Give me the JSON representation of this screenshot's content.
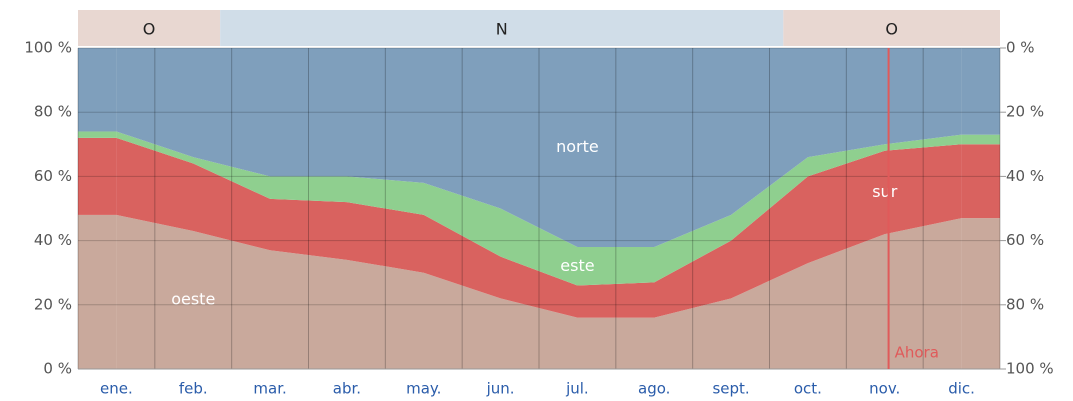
{
  "chart_data": {
    "type": "stacked_area",
    "categories": [
      "ene.",
      "feb.",
      "mar.",
      "abr.",
      "may.",
      "jun.",
      "jul.",
      "ago.",
      "sept.",
      "oct.",
      "nov.",
      "dic."
    ],
    "series": [
      {
        "name": "oeste",
        "color": "#c9a99c",
        "values": [
          48,
          43,
          37,
          34,
          30,
          22,
          16,
          16,
          22,
          33,
          42,
          47
        ]
      },
      {
        "name": "sur",
        "color": "#d9625f",
        "values": [
          24,
          21,
          16,
          18,
          18,
          13,
          10,
          11,
          18,
          27,
          26,
          23
        ]
      },
      {
        "name": "este",
        "color": "#8fcf8f",
        "values": [
          2,
          2,
          7,
          8,
          10,
          15,
          12,
          11,
          8,
          6,
          2,
          3
        ]
      },
      {
        "name": "norte",
        "color": "#7f9fbc",
        "values": [
          26,
          34,
          40,
          40,
          42,
          50,
          62,
          62,
          52,
          34,
          30,
          27
        ]
      }
    ],
    "ylim": [
      0,
      100
    ],
    "yticks": [
      {
        "value": 0,
        "label": "0 %"
      },
      {
        "value": 20,
        "label": "20 %"
      },
      {
        "value": 40,
        "label": "40 %"
      },
      {
        "value": 60,
        "label": "60 %"
      },
      {
        "value": 80,
        "label": "80 %"
      },
      {
        "value": 100,
        "label": "100 %"
      }
    ],
    "y2lim": [
      100,
      0
    ],
    "y2ticks": [
      {
        "value": 0,
        "label": "0 %"
      },
      {
        "value": 20,
        "label": "20 %"
      },
      {
        "value": 40,
        "label": "40 %"
      },
      {
        "value": 60,
        "label": "60 %"
      },
      {
        "value": 80,
        "label": "80 %"
      },
      {
        "value": 100,
        "label": "100 %"
      }
    ],
    "grid": true,
    "dominant_periods": [
      {
        "label": "O",
        "start": 0,
        "end": 1.85,
        "color": "#e8d7d1"
      },
      {
        "label": "N",
        "start": 1.85,
        "end": 9.18,
        "color": "#d0dde8"
      },
      {
        "label": "O",
        "start": 9.18,
        "end": 12,
        "color": "#e8d7d1"
      }
    ],
    "annotation": {
      "label": "Ahora",
      "x": 10.55,
      "color": "#e05a5a"
    }
  }
}
